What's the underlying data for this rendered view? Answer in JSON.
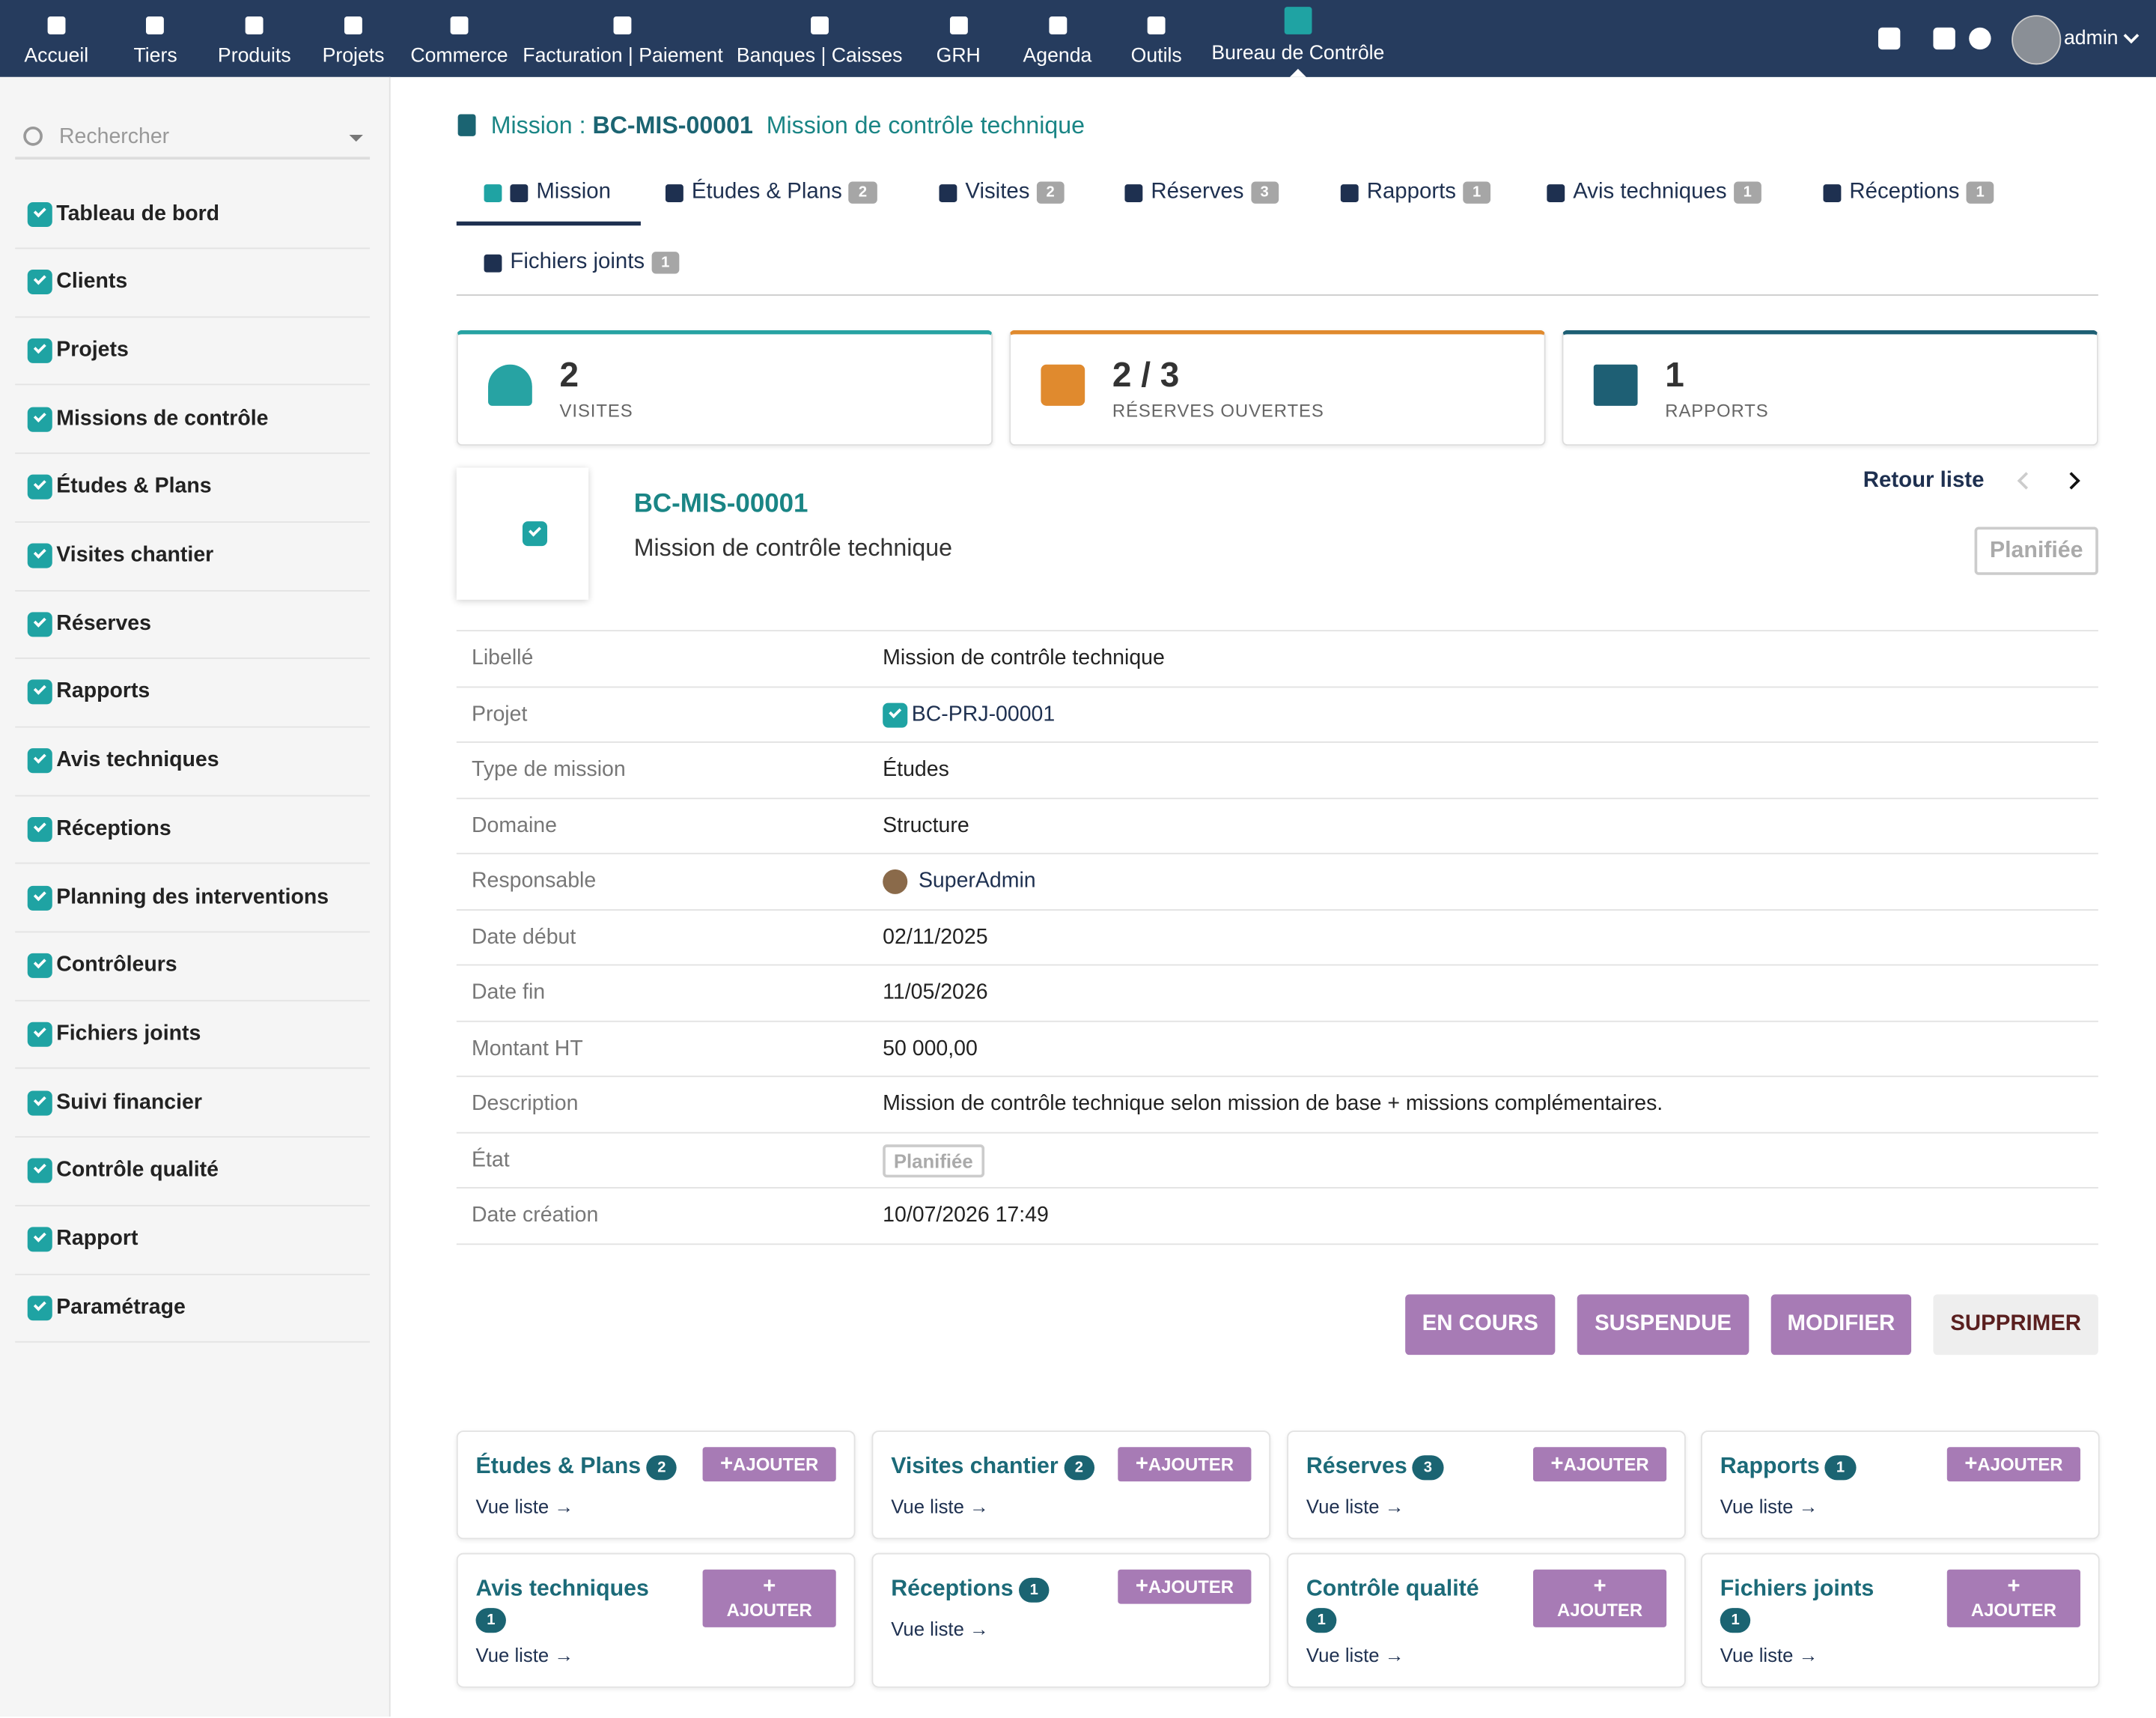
{
  "topnav": {
    "items": [
      "Accueil",
      "Tiers",
      "Produits",
      "Projets",
      "Commerce",
      "Facturation | Paiement",
      "Banques | Caisses",
      "GRH",
      "Agenda",
      "Outils",
      "Bureau de Contrôle"
    ],
    "user": "admin"
  },
  "sidebar": {
    "search": "Rechercher",
    "items": [
      "Tableau de bord",
      "Clients",
      "Projets",
      "Missions de contrôle",
      "Études & Plans",
      "Visites chantier",
      "Réserves",
      "Rapports",
      "Avis techniques",
      "Réceptions",
      "Planning des interventions",
      "Contrôleurs",
      "Fichiers joints",
      "Suivi financier",
      "Contrôle qualité",
      "Rapport",
      "Paramétrage"
    ]
  },
  "header": {
    "prefix": "Mission :",
    "ref": "BC-MIS-00001",
    "title": "Mission de contrôle technique"
  },
  "tabs": [
    {
      "label": "Mission"
    },
    {
      "label": "Études & Plans",
      "count": 2
    },
    {
      "label": "Visites",
      "count": 2
    },
    {
      "label": "Réserves",
      "count": 3
    },
    {
      "label": "Rapports",
      "count": 1
    },
    {
      "label": "Avis techniques",
      "count": 1
    },
    {
      "label": "Réceptions",
      "count": 1
    },
    {
      "label": "Fichiers joints",
      "count": 1
    }
  ],
  "stats": [
    {
      "value": 2,
      "label": "VISITES"
    },
    {
      "value": "2 / 3",
      "label": "RÉSERVES OUVERTES"
    },
    {
      "value": 1,
      "label": "RAPPORTS"
    }
  ],
  "card": {
    "ref": "BC-MIS-00001",
    "title": "Mission de contrôle technique",
    "back": "Retour liste",
    "status": "Planifiée"
  },
  "fields": [
    {
      "label": "Libellé",
      "value": "Mission de contrôle technique"
    },
    {
      "label": "Projet",
      "value": "BC-PRJ-00001"
    },
    {
      "label": "Type de mission",
      "value": "Études"
    },
    {
      "label": "Domaine",
      "value": "Structure"
    },
    {
      "label": "Responsable",
      "value": "SuperAdmin"
    },
    {
      "label": "Date début",
      "value": "02/11/2025"
    },
    {
      "label": "Date fin",
      "value": "11/05/2026"
    },
    {
      "label": "Montant HT",
      "value": "50 000,00"
    },
    {
      "label": "Description",
      "value": "Mission de contrôle technique selon mission de base + missions complémentaires."
    },
    {
      "label": "État",
      "value": "Planifiée"
    },
    {
      "label": "Date création",
      "value": "10/07/2026 17:49"
    }
  ],
  "actions": [
    "EN COURS",
    "SUSPENDUE",
    "MODIFIER",
    "SUPPRIMER"
  ],
  "tiles": [
    {
      "title": "Études & Plans",
      "count": 2,
      "add": "AJOUTER",
      "link": "Vue liste →"
    },
    {
      "title": "Visites chantier",
      "count": 2,
      "add": "AJOUTER",
      "link": "Vue liste →"
    },
    {
      "title": "Réserves",
      "count": 3,
      "add": "AJOUTER",
      "link": "Vue liste →"
    },
    {
      "title": "Rapports",
      "count": 1,
      "add": "AJOUTER",
      "link": "Vue liste →"
    },
    {
      "title": "Avis techniques",
      "count": 1,
      "add": "AJOUTER",
      "link": "Vue liste →"
    },
    {
      "title": "Réceptions",
      "count": 1,
      "add": "AJOUTER",
      "link": "Vue liste →"
    },
    {
      "title": "Contrôle qualité",
      "count": 1,
      "add": "AJOUTER",
      "link": "Vue liste →"
    },
    {
      "title": "Fichiers joints",
      "count": 1,
      "add": "AJOUTER",
      "link": "Vue liste →"
    }
  ]
}
